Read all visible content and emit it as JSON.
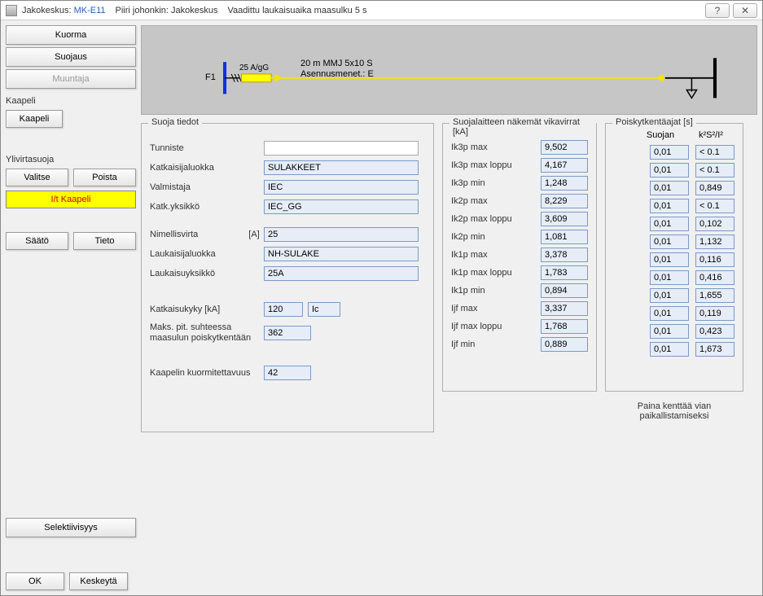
{
  "titlebar": {
    "seg1_label": "Jakokeskus:",
    "seg1_value": "MK-E11",
    "seg2_label": "Piiri johonkin:",
    "seg2_value": "Jakokeskus",
    "seg3": "Vaadittu laukaisuaika maasulku 5 s"
  },
  "left": {
    "kuorma": "Kuorma",
    "suojaus": "Suojaus",
    "muuntaja": "Muuntaja",
    "kaapeli_label": "Kaapeli",
    "kaapeli_btn": "Kaapeli",
    "ylivirta_label": "Ylivirtasuoja",
    "valitse": "Valitse",
    "poista": "Poista",
    "it_kaapeli": "I/t Kaapeli",
    "saato": "Säätö",
    "tieto": "Tieto",
    "selektiivisyys": "Selektiivisyys",
    "ok": "OK",
    "keskeyta": "Keskeytä"
  },
  "diagram": {
    "f1": "F1",
    "rating": "25 A/gG",
    "cable": "20 m  MMJ 5x10 S",
    "install": "Asennusmenet.: E"
  },
  "protect": {
    "title": "Suoja tiedot",
    "tunniste_lbl": "Tunniste",
    "tunniste_val": "",
    "katkluokka_lbl": "Katkaisijaluokka",
    "katkluokka_val": "SULAKKEET",
    "valmistaja_lbl": "Valmistaja",
    "valmistaja_val": "IEC",
    "katkyks_lbl": "Katk.yksikkö",
    "katkyks_val": "IEC_GG",
    "nimellis_lbl": "Nimellisvirta",
    "nimellis_unit": "[A]",
    "nimellis_val": "25",
    "laukluokka_lbl": "Laukaisijaluokka",
    "laukluokka_val": "NH-SULAKE",
    "laukyks_lbl": "Laukaisuyksikkö",
    "laukyks_val": "25A",
    "katkkyky_lbl": "Katkaisukyky [kA]",
    "katkkyky_val": "120",
    "katkkyky_type": "Ic",
    "makspit_lbl": "Maks. pit. suhteessa maasulun poiskytkentään",
    "makspit_val": "362",
    "kaapkuorm_lbl": "Kaapelin kuormitettavuus",
    "kaapkuorm_val": "42"
  },
  "faults": {
    "title": "Suojalaitteen näkemät vikavirrat [kA]",
    "rows": [
      {
        "lbl": "Ik3p max",
        "val": "9,502"
      },
      {
        "lbl": "Ik3p max loppu",
        "val": "4,167"
      },
      {
        "lbl": "Ik3p min",
        "val": "1,248"
      },
      {
        "lbl": "Ik2p max",
        "val": "8,229"
      },
      {
        "lbl": "Ik2p max loppu",
        "val": "3,609"
      },
      {
        "lbl": "Ik2p min",
        "val": "1,081"
      },
      {
        "lbl": "Ik1p max",
        "val": "3,378"
      },
      {
        "lbl": "Ik1p max loppu",
        "val": "1,783"
      },
      {
        "lbl": "Ik1p min",
        "val": "0,894"
      },
      {
        "lbl": "Ijf max",
        "val": "3,337"
      },
      {
        "lbl": "Ijf max loppu",
        "val": "1,768"
      },
      {
        "lbl": "Ijf min",
        "val": "0,889"
      }
    ]
  },
  "times": {
    "title": "Poiskytkentäajat [s]",
    "head1": "Suojan",
    "head2": "k²S²/I²",
    "rows": [
      {
        "a": "0,01",
        "b": "< 0.1"
      },
      {
        "a": "0,01",
        "b": "< 0.1"
      },
      {
        "a": "0,01",
        "b": "0,849"
      },
      {
        "a": "0,01",
        "b": "< 0.1"
      },
      {
        "a": "0,01",
        "b": "0,102"
      },
      {
        "a": "0,01",
        "b": "1,132"
      },
      {
        "a": "0,01",
        "b": "0,116"
      },
      {
        "a": "0,01",
        "b": "0,416"
      },
      {
        "a": "0,01",
        "b": "1,655"
      },
      {
        "a": "0,01",
        "b": "0,119"
      },
      {
        "a": "0,01",
        "b": "0,423"
      },
      {
        "a": "0,01",
        "b": "1,673"
      }
    ],
    "hint": "Paina kenttää vian paikallistamiseksi"
  },
  "colors": {
    "highlight": "#ffff00",
    "highlight_text": "#c00000",
    "diagram_bg": "#c6c6c6",
    "arrow": "#f5e400",
    "bus_left": "#1030e0",
    "bus_right": "#000000",
    "field_bg": "#e6edf7",
    "field_border": "#7a9ac9"
  }
}
